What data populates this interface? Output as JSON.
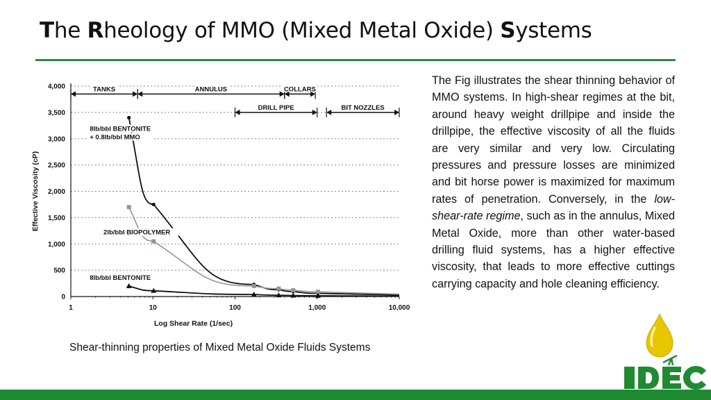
{
  "slide": {
    "title_parts": [
      {
        "text": "T",
        "bold": true
      },
      {
        "text": "he ",
        "bold": false
      },
      {
        "text": "R",
        "bold": true
      },
      {
        "text": "heology of MMO (Mixed Metal Oxide) ",
        "bold": false
      },
      {
        "text": "S",
        "bold": true
      },
      {
        "text": "ystems",
        "bold": false
      }
    ],
    "body_text_before": "The Fig illustrates the shear thinning behavior of MMO systems. In high-shear regimes at the bit, around heavy weight drillpipe and inside the drillpipe, the effective viscosity of all the fluids are very similar and very low. Circulating pressures and pressure losses are minimized and bit horse power is maximized for maximum rates of penetration. Conversely, in the ",
    "body_text_italic": "low-shear-rate regime",
    "body_text_after": ", such as in the annulus, Mixed Metal Oxide, more than other water-based drilling fluid systems, has a higher effective viscosity, that leads to more effective cuttings carrying capacity and hole cleaning efficiency.",
    "caption": "Shear-thinning properties of Mixed Metal Oxide Fluids Systems",
    "logo_text": "IDEC",
    "colors": {
      "accent": "#2e8b3a",
      "footer": "#1f8a32",
      "logo_green": "#1f8a32",
      "drop_yellow": "#e8c600"
    }
  },
  "chart_data": {
    "type": "line",
    "xlabel": "Log Shear Rate (1/sec)",
    "ylabel": "Effective Viscosity (cP)",
    "x_scale": "log",
    "xlim": [
      1,
      10000
    ],
    "ylim": [
      0,
      4000
    ],
    "x_ticks": [
      1,
      10,
      100,
      1000,
      10000
    ],
    "x_tick_labels": [
      "1",
      "10",
      "100",
      "1,000",
      "10,000"
    ],
    "y_ticks": [
      0,
      500,
      1000,
      1500,
      2000,
      2500,
      3000,
      3500,
      4000
    ],
    "y_tick_labels": [
      "0",
      "500",
      "1,000",
      "1,500",
      "2,000",
      "2,500",
      "3,000",
      "3,500",
      "4,000"
    ],
    "grid": "horizontal dotted",
    "series": [
      {
        "name": "8lb/bbl BENTONITE + 0.8lb/bbl MMO",
        "label_lines": [
          "8lb/bbl BENTONITE",
          "+ 0.8lb/bbl MMO"
        ],
        "color": "#111111",
        "marker": "circle",
        "x": [
          5.1,
          10.2,
          170,
          340,
          511,
          1022
        ],
        "y": [
          3400,
          1750,
          230,
          130,
          95,
          60
        ]
      },
      {
        "name": "2lb/bbl BIOPOLYMER",
        "label_lines": [
          "2lb/bbl BIOPOLYMER"
        ],
        "color": "#8c9a94",
        "marker": "square",
        "x": [
          5.1,
          10.2,
          170,
          340,
          511,
          1022
        ],
        "y": [
          1700,
          1050,
          200,
          150,
          120,
          90
        ]
      },
      {
        "name": "8lb/bbl BENTONITE",
        "label_lines": [
          "8lb/bbl BENTONITE"
        ],
        "color": "#111111",
        "marker": "triangle",
        "x": [
          5.1,
          10.2,
          170,
          340,
          511,
          1022
        ],
        "y": [
          200,
          110,
          40,
          25,
          20,
          15
        ]
      }
    ],
    "annotations": [
      {
        "label": "TANKS",
        "from": 1,
        "to": 6.5,
        "y": 3850
      },
      {
        "label": "ANNULUS",
        "from": 6.5,
        "to": 400,
        "y": 3850
      },
      {
        "label": "COLLARS",
        "from": 400,
        "to": 950,
        "y": 3850
      },
      {
        "label": "DRILL PIPE",
        "from": 100,
        "to": 1000,
        "y": 3500
      },
      {
        "label": "BIT NOZZLES",
        "from": 1300,
        "to": 10000,
        "y": 3500
      }
    ]
  }
}
